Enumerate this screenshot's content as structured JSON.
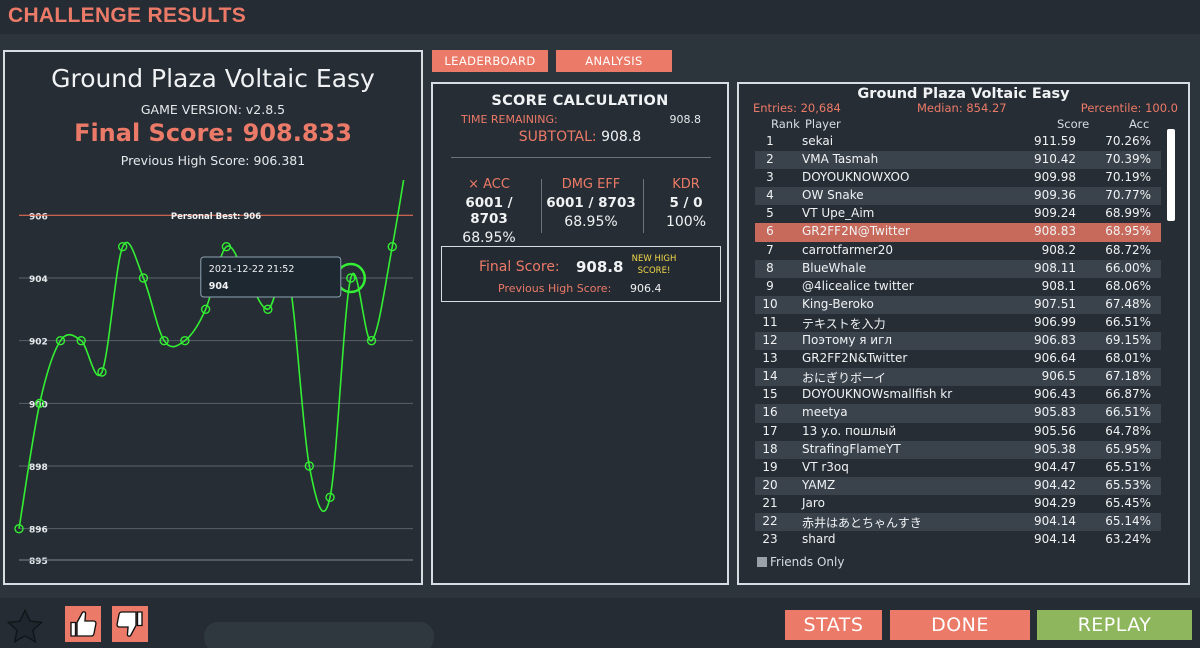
{
  "header": {
    "title": "CHALLENGE RESULTS"
  },
  "left": {
    "title": "Ground Plaza Voltaic Easy",
    "version": "GAME VERSION: v2.8.5",
    "final_score": "Final Score: 908.833",
    "previous_high": "Previous High Score: 906.381"
  },
  "chart_data": {
    "type": "line",
    "y": [
      896,
      900,
      902,
      902,
      901,
      905,
      904,
      902,
      902,
      903,
      905,
      904,
      903,
      904,
      898,
      897,
      904,
      902,
      905,
      909
    ],
    "ylim": [
      895,
      907
    ],
    "yticks": [
      "906",
      "904",
      "902",
      "900",
      "898",
      "896",
      "895"
    ],
    "personal_best": 906,
    "personal_best_label": "Personal Best: 906",
    "grid": true,
    "tooltip": {
      "date": "2021-12-22 21:52",
      "value": "904",
      "index": 16
    },
    "colors": {
      "line": "#33ee33",
      "best_line": "#d8674f",
      "grid": "#59626b"
    }
  },
  "tabs": {
    "leaderboard": "LEADERBOARD",
    "analysis": "ANALYSIS"
  },
  "score_calc": {
    "title": "SCORE CALCULATION",
    "time_remaining_label": "TIME REMAINING:",
    "time_remaining_value": "908.8",
    "subtotal_label": "SUBTOTAL:",
    "subtotal_value": "908.8",
    "acc": {
      "label": "× ACC",
      "ratio": "6001 / 8703",
      "pct": "68.95%"
    },
    "dmg": {
      "label": "DMG EFF",
      "ratio": "6001 / 8703",
      "pct": "68.95%"
    },
    "kdr": {
      "label": "KDR",
      "ratio": "5 / 0",
      "pct": "100%"
    },
    "final_label": "Final Score:",
    "final_value": "908.8",
    "new_high_line1": "NEW HIGH",
    "new_high_line2": "SCORE!",
    "prev_label": "Previous High Score:",
    "prev_value": "906.4"
  },
  "leaderboard": {
    "title": "Ground Plaza Voltaic Easy",
    "entries": "Entries: 20,684",
    "median": "Median: 854.27",
    "percentile": "Percentile: 100.0",
    "columns": {
      "rank": "Rank",
      "player": "Player",
      "score": "Score",
      "acc": "Acc"
    },
    "highlight_rank": 6,
    "rows": [
      [
        "1",
        "sekai",
        "911.59",
        "70.26%"
      ],
      [
        "2",
        "VMA Tasmah",
        "910.42",
        "70.39%"
      ],
      [
        "3",
        "DOYOUKNOWXOO",
        "909.98",
        "70.19%"
      ],
      [
        "4",
        "OW Snake",
        "909.36",
        "70.77%"
      ],
      [
        "5",
        "VT Upe_Aim",
        "909.24",
        "68.99%"
      ],
      [
        "6",
        "GR2FF2N@Twitter",
        "908.83",
        "68.95%"
      ],
      [
        "7",
        "carrotfarmer20",
        "908.2",
        "68.72%"
      ],
      [
        "8",
        "BlueWhale",
        "908.11",
        "66.00%"
      ],
      [
        "9",
        "@4licealice twitter",
        "908.1",
        "68.06%"
      ],
      [
        "10",
        "King-Beroko",
        "907.51",
        "67.48%"
      ],
      [
        "11",
        "テキストを入力",
        "906.99",
        "66.51%"
      ],
      [
        "12",
        "Поэтому я игл",
        "906.83",
        "69.15%"
      ],
      [
        "13",
        "GR2FF2N&Twitter",
        "906.64",
        "68.01%"
      ],
      [
        "14",
        "おにぎりボーイ",
        "906.5",
        "67.18%"
      ],
      [
        "15",
        "DOYOUKNOWsmallfish kr",
        "906.43",
        "66.87%"
      ],
      [
        "16",
        "meetya",
        "905.83",
        "66.51%"
      ],
      [
        "17",
        "13 y.o. пошлый",
        "905.56",
        "64.78%"
      ],
      [
        "18",
        "StrafingFlameYT",
        "905.38",
        "65.95%"
      ],
      [
        "19",
        "VT r3oq",
        "904.47",
        "65.51%"
      ],
      [
        "20",
        "YAMZ",
        "904.42",
        "65.53%"
      ],
      [
        "21",
        "Jaro",
        "904.29",
        "65.45%"
      ],
      [
        "22",
        "赤井はあとちゃんすき",
        "904.14",
        "65.14%"
      ],
      [
        "23",
        "shard",
        "904.14",
        "63.24%"
      ]
    ],
    "friends_only": "Friends Only"
  },
  "footer": {
    "stats": "STATS",
    "done": "DONE",
    "replay": "REPLAY"
  },
  "icons": {
    "star": "star-icon",
    "like": "thumbs-up-icon",
    "dislike": "thumbs-down-icon"
  },
  "colors": {
    "accent": "#ec7a68",
    "replay": "#8eb65c",
    "panel": "#262d34",
    "background": "#2c343c"
  }
}
